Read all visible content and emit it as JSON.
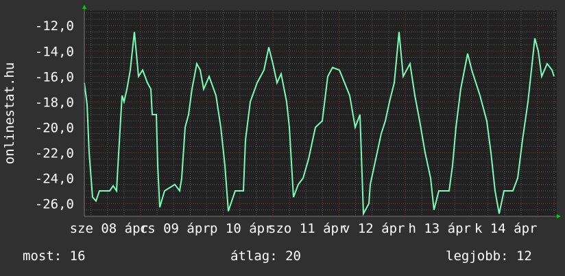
{
  "chart_data": {
    "type": "line",
    "title": "",
    "ylabel": "onlinestat.hu",
    "xlabel": "",
    "ylim": [
      -27,
      -10.8
    ],
    "xlim": [
      "04-08 03:36",
      "04-15 06:58"
    ],
    "yticks": [
      -12,
      -14,
      -16,
      -18,
      -20,
      -22,
      -24,
      -26
    ],
    "ytick_labels": [
      "-12,0",
      "-14,0",
      "-16,0",
      "-18,0",
      "-20,0",
      "-22,0",
      "-24,0",
      "-26,0"
    ],
    "xtick_labels": [
      "sze 08 ápr",
      "cs 09 ápr",
      "p 10 ápr",
      "szo 11 ápr",
      "v 12 ápr",
      "h 13 ápr",
      "k 14 ápr"
    ],
    "grid": true,
    "colors": {
      "line": "#7dfbb8",
      "plot_bg": "#212121",
      "canvas_bg": "#303030",
      "major_grid": "#7a3a3a",
      "minor_grid": "#5a5a5a",
      "arrow": "#00d000"
    },
    "series": [
      {
        "points": [
          [
            "04-08 03:36",
            -16.5
          ],
          [
            "04-08 04:36",
            -18.2
          ],
          [
            "04-08 05:21",
            -22
          ],
          [
            "04-08 06:35",
            -25.5
          ],
          [
            "04-08 07:50",
            -25.8
          ],
          [
            "04-08 09:05",
            -25
          ],
          [
            "04-08 12:48",
            -25
          ],
          [
            "04-08 14:03",
            -24.6
          ],
          [
            "04-08 15:18",
            -25
          ],
          [
            "04-08 15:47",
            -23
          ],
          [
            "04-08 17:17",
            -17.5
          ],
          [
            "04-08 18:00",
            -18
          ],
          [
            "04-08 19:02",
            -17
          ],
          [
            "04-08 20:16",
            -15.5
          ],
          [
            "04-08 21:46",
            -12.5
          ],
          [
            "04-08 23:15",
            -16
          ],
          [
            "04-09 00:45",
            -15.5
          ],
          [
            "04-09 02:29",
            -16.5
          ],
          [
            "04-09 03:44",
            -17
          ],
          [
            "04-09 04:14",
            -19
          ],
          [
            "04-09 05:43",
            -19
          ],
          [
            "04-09 06:13",
            -23
          ],
          [
            "04-09 06:58",
            -26.3
          ],
          [
            "04-09 08:42",
            -25
          ],
          [
            "04-09 12:26",
            -24.5
          ],
          [
            "04-09 14:11",
            -25
          ],
          [
            "04-09 14:55",
            -24
          ],
          [
            "04-09 16:10",
            -20
          ],
          [
            "04-09 17:25",
            -19
          ],
          [
            "04-09 18:39",
            -17
          ],
          [
            "04-09 20:23",
            -15
          ],
          [
            "04-09 21:38",
            -15.5
          ],
          [
            "04-09 22:53",
            -17
          ],
          [
            "04-10 00:52",
            -16
          ],
          [
            "04-10 03:21",
            -17.5
          ],
          [
            "04-10 05:06",
            -20
          ],
          [
            "04-10 06:35",
            -23
          ],
          [
            "04-10 07:50",
            -26.6
          ],
          [
            "04-10 10:19",
            -25
          ],
          [
            "04-10 13:18",
            -25
          ],
          [
            "04-10 14:03",
            -21
          ],
          [
            "04-10 15:47",
            -18
          ],
          [
            "04-10 18:17",
            -16.5
          ],
          [
            "04-10 20:46",
            -15.5
          ],
          [
            "04-10 22:31",
            -13.7
          ],
          [
            "04-11 00:00",
            -15
          ],
          [
            "04-11 01:29",
            -16.5
          ],
          [
            "04-11 02:59",
            -15.8
          ],
          [
            "04-11 04:58",
            -18
          ],
          [
            "04-11 05:58",
            -20
          ],
          [
            "04-11 07:28",
            -25.5
          ],
          [
            "04-11 09:12",
            -24.5
          ],
          [
            "04-11 10:56",
            -24
          ],
          [
            "04-11 12:56",
            -22.5
          ],
          [
            "04-11 15:25",
            -20
          ],
          [
            "04-11 17:55",
            -19.5
          ],
          [
            "04-11 19:54",
            -16
          ],
          [
            "04-11 21:38",
            -15.3
          ],
          [
            "04-12 00:07",
            -15.5
          ],
          [
            "04-12 03:51",
            -17.5
          ],
          [
            "04-12 05:50",
            -20
          ],
          [
            "04-12 07:35",
            -19
          ],
          [
            "04-12 08:50",
            -26.8
          ],
          [
            "04-12 10:49",
            -26
          ],
          [
            "04-12 11:19",
            -24.5
          ],
          [
            "04-12 13:18",
            -22.5
          ],
          [
            "04-12 15:17",
            -20.5
          ],
          [
            "04-12 16:47",
            -19.5
          ],
          [
            "04-12 18:17",
            -18
          ],
          [
            "04-12 20:01",
            -16.5
          ],
          [
            "04-12 21:46",
            -12.5
          ],
          [
            "04-12 23:15",
            -16
          ],
          [
            "04-13 01:44",
            -15
          ],
          [
            "04-13 03:29",
            -17.5
          ],
          [
            "04-13 05:13",
            -19.5
          ],
          [
            "04-13 07:13",
            -22
          ],
          [
            "04-13 09:12",
            -24
          ],
          [
            "04-13 10:26",
            -26.5
          ],
          [
            "04-13 12:11",
            -25
          ],
          [
            "04-13 15:55",
            -25
          ],
          [
            "04-13 17:10",
            -23
          ],
          [
            "04-13 18:24",
            -20
          ],
          [
            "04-13 20:08",
            -17
          ],
          [
            "04-13 22:38",
            -14.2
          ],
          [
            "04-14 00:07",
            -15.5
          ],
          [
            "04-14 03:07",
            -17.5
          ],
          [
            "04-14 05:35",
            -19.5
          ],
          [
            "04-14 07:05",
            -22
          ],
          [
            "04-14 08:35",
            -25
          ],
          [
            "04-14 10:04",
            -26.8
          ],
          [
            "04-14 11:49",
            -25
          ],
          [
            "04-14 15:02",
            -25
          ],
          [
            "04-14 16:47",
            -24
          ],
          [
            "04-14 18:32",
            -21
          ],
          [
            "04-14 20:31",
            -18
          ],
          [
            "04-14 21:46",
            -15.5
          ],
          [
            "04-14 23:00",
            -13
          ],
          [
            "04-15 00:15",
            -14
          ],
          [
            "04-15 01:29",
            -16
          ],
          [
            "04-15 03:29",
            -15
          ],
          [
            "04-15 05:13",
            -15.5
          ],
          [
            "04-15 05:58",
            -16
          ]
        ]
      }
    ]
  },
  "legend": {
    "current": "most: 16",
    "average": "átlag: 20",
    "max": "legjobb: 12"
  }
}
